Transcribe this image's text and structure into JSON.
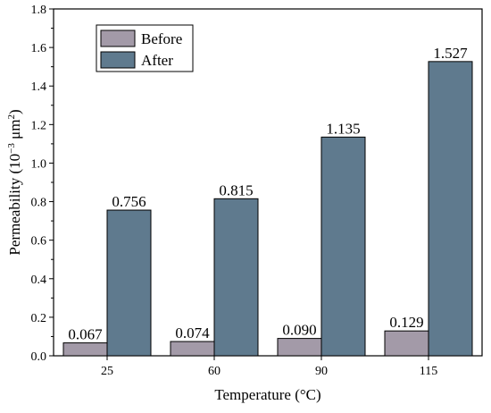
{
  "chart_data": {
    "type": "bar",
    "categories": [
      "25",
      "60",
      "90",
      "115"
    ],
    "series": [
      {
        "name": "Before",
        "values": [
          0.067,
          0.074,
          0.09,
          0.129
        ],
        "labels": [
          "0.067",
          "0.074",
          "0.090",
          "0.129"
        ],
        "color": "#a39aa8"
      },
      {
        "name": "After",
        "values": [
          0.756,
          0.815,
          1.135,
          1.527
        ],
        "labels": [
          "0.756",
          "0.815",
          "1.135",
          "1.527"
        ],
        "color": "#5f7a8e"
      }
    ],
    "xlabel": "Temperature (°C)",
    "ylabel_main": "Permeability (10",
    "ylabel_exp": "−3",
    "ylabel_unit": " μm",
    "ylabel_unit_exp": "2",
    "ylabel_close": ")",
    "ylim": [
      0,
      1.8
    ],
    "yticks": [
      "0.0",
      "0.2",
      "0.4",
      "0.6",
      "0.8",
      "1.0",
      "1.2",
      "1.4",
      "1.6",
      "1.8"
    ],
    "legend_position": "top-left",
    "grid": false
  }
}
